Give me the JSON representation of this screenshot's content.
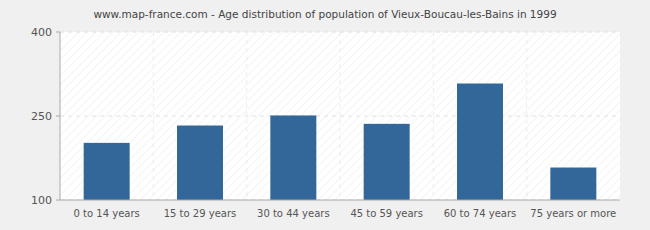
{
  "chart_data": {
    "type": "bar",
    "title": "www.map-france.com - Age distribution of population of Vieux-Boucau-les-Bains in 1999",
    "categories": [
      "0 to 14 years",
      "15 to 29 years",
      "30 to 44 years",
      "45 to 59 years",
      "60 to 74 years",
      "75 years or more"
    ],
    "values": [
      202,
      233,
      251,
      236,
      308,
      158
    ],
    "color": "#336699",
    "ylim": [
      100,
      400
    ],
    "yticks": [
      100,
      250,
      400
    ],
    "grid": true
  }
}
